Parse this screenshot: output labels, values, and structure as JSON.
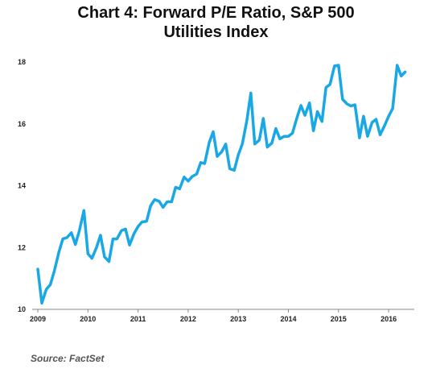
{
  "chart_data": {
    "type": "line",
    "title": "Chart 4: Forward P/E Ratio, S&P 500 Utilities Index",
    "title_lines": [
      "Chart 4: Forward P/E Ratio, S&P 500",
      "Utilities Index"
    ],
    "xlabel": "",
    "ylabel": "",
    "xlim": [
      2009.0,
      2016.4
    ],
    "ylim": [
      10,
      18.5
    ],
    "x_ticks": [
      "2009",
      "2010",
      "2011",
      "2012",
      "2013",
      "2014",
      "2015",
      "2016"
    ],
    "y_ticks": [
      "10",
      "12",
      "14",
      "16",
      "18"
    ],
    "grid": false,
    "series": [
      {
        "color": "#1aa7e6",
        "x": [
          2009.0,
          2009.08,
          2009.17,
          2009.25,
          2009.33,
          2009.42,
          2009.5,
          2009.58,
          2009.67,
          2009.75,
          2009.83,
          2009.92,
          2010.0,
          2010.08,
          2010.17,
          2010.25,
          2010.33,
          2010.42,
          2010.5,
          2010.58,
          2010.67,
          2010.75,
          2010.83,
          2010.92,
          2011.0,
          2011.08,
          2011.17,
          2011.25,
          2011.33,
          2011.42,
          2011.5,
          2011.58,
          2011.67,
          2011.75,
          2011.83,
          2011.92,
          2012.0,
          2012.08,
          2012.17,
          2012.25,
          2012.33,
          2012.42,
          2012.5,
          2012.58,
          2012.67,
          2012.75,
          2012.83,
          2012.92,
          2013.0,
          2013.08,
          2013.17,
          2013.25,
          2013.33,
          2013.42,
          2013.5,
          2013.58,
          2013.67,
          2013.75,
          2013.83,
          2013.92,
          2014.0,
          2014.08,
          2014.17,
          2014.25,
          2014.33,
          2014.42,
          2014.5,
          2014.58,
          2014.67,
          2014.75,
          2014.83,
          2014.92,
          2015.0,
          2015.08,
          2015.17,
          2015.25,
          2015.33,
          2015.42,
          2015.5,
          2015.58,
          2015.67,
          2015.75,
          2015.83,
          2015.92,
          2016.0,
          2016.08,
          2016.17,
          2016.25,
          2016.33
        ],
        "y": [
          11.3,
          10.2,
          10.65,
          10.8,
          11.25,
          11.85,
          12.28,
          12.32,
          12.48,
          12.1,
          12.55,
          13.2,
          11.8,
          11.65,
          12.0,
          12.4,
          11.7,
          11.55,
          12.28,
          12.28,
          12.55,
          12.6,
          12.08,
          12.45,
          12.68,
          12.83,
          12.85,
          13.35,
          13.55,
          13.5,
          13.3,
          13.48,
          13.48,
          13.95,
          13.9,
          14.28,
          14.15,
          14.3,
          14.38,
          14.75,
          14.72,
          15.4,
          15.75,
          14.95,
          15.1,
          15.35,
          14.55,
          14.5,
          15.0,
          15.35,
          16.1,
          17.0,
          15.35,
          15.48,
          16.18,
          15.25,
          15.38,
          15.85,
          15.52,
          15.6,
          15.6,
          15.7,
          16.2,
          16.6,
          16.28,
          16.68,
          15.78,
          16.4,
          16.08,
          17.18,
          17.28,
          17.88,
          17.9,
          16.8,
          16.65,
          16.58,
          16.62,
          15.55,
          16.25,
          15.6,
          16.05,
          16.15,
          15.65,
          15.95,
          16.25,
          16.5,
          17.9,
          17.55,
          17.68
        ]
      }
    ]
  },
  "source": "Source: FactSet"
}
